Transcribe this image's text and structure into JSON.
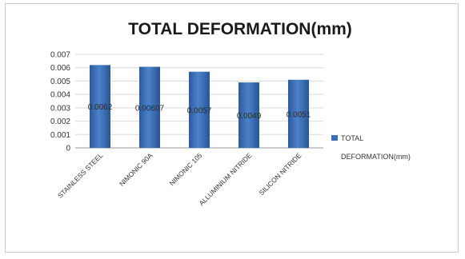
{
  "chart_data": {
    "type": "bar",
    "title": "TOTAL DEFORMATION(mm)",
    "categories": [
      "STAINLESS STEEL",
      "NIMONIC 90A",
      "NIMONIC 105",
      "ALLUMINIUM NITRIDE",
      "SILICON NITRIDE"
    ],
    "series": [
      {
        "name": "TOTAL DEFORMATION(mm)",
        "values": [
          0.0062,
          0.00607,
          0.0057,
          0.0049,
          0.0051
        ],
        "labels": [
          "0.0062",
          "0.00607",
          "0.0057",
          "0.0049",
          "0.0051"
        ],
        "color": "#3a6fb8"
      }
    ],
    "ylim": [
      0,
      0.007
    ],
    "yticks": [
      "0",
      "0.001",
      "0.002",
      "0.003",
      "0.004",
      "0.005",
      "0.006",
      "0.007"
    ],
    "grid": true,
    "legend": "right"
  }
}
